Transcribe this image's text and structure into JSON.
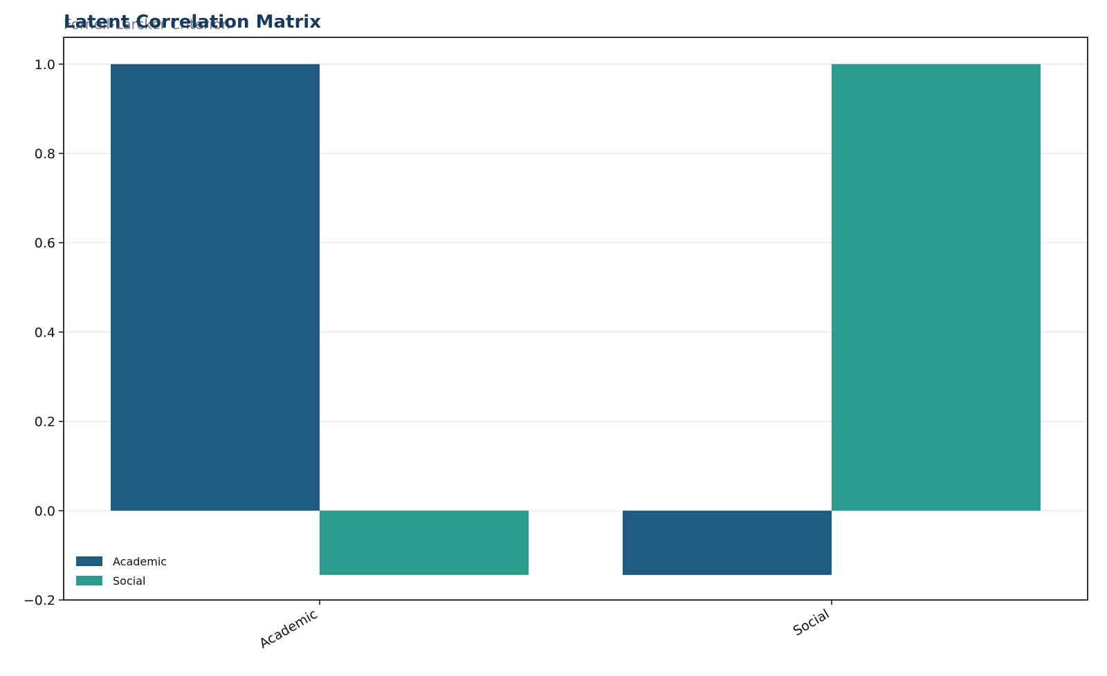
{
  "chart_data": {
    "type": "bar",
    "title": "Latent Correlation Matrix",
    "subtitle": "Fornell-Larcker Criterion",
    "xlabel": "",
    "ylabel": "",
    "categories": [
      "Academic",
      "Social"
    ],
    "series": [
      {
        "name": "Academic",
        "color": "#1f5a82",
        "values": [
          1.0,
          -0.144
        ]
      },
      {
        "name": "Social",
        "color": "#2a9d8f",
        "values": [
          -0.144,
          1.0
        ]
      }
    ],
    "ylim": [
      -0.2,
      1.06
    ],
    "yticks": [
      -0.2,
      0.0,
      0.2,
      0.4,
      0.6,
      0.8,
      1.0
    ],
    "ytick_labels": [
      "−0.2",
      "0.0",
      "0.2",
      "0.4",
      "0.6",
      "0.8",
      "1.0"
    ],
    "grid": "horizontal",
    "legend_position": "lower-left"
  }
}
